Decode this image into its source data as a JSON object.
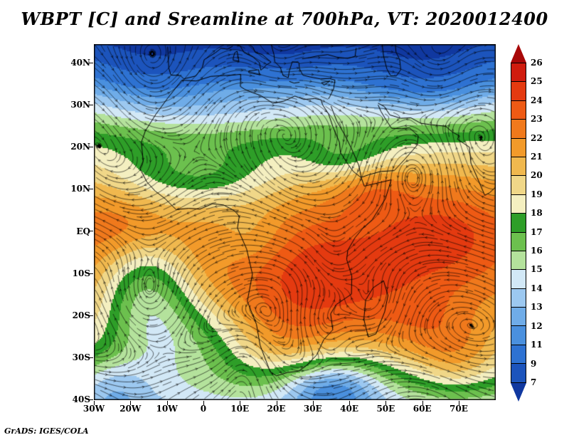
{
  "title": "WBPT [C] and Sreamline at 700hPa, VT: 2020012400",
  "footer": "GrADS: IGES/COLA",
  "chart_data": {
    "type": "heatmap",
    "variable": "WBPT [C]",
    "overlay": "streamlines",
    "level": "700hPa",
    "valid_time": "2020012400",
    "x_axis": {
      "labels": [
        "30W",
        "20W",
        "10W",
        "0",
        "10E",
        "20E",
        "30E",
        "40E",
        "50E",
        "60E",
        "70E"
      ],
      "range_deg_lon": [
        -30,
        80
      ]
    },
    "y_axis": {
      "labels": [
        "40N",
        "30N",
        "20N",
        "10N",
        "EQ",
        "10S",
        "20S",
        "30S",
        "40S"
      ],
      "range_deg_lat": [
        44.4,
        -40.6
      ]
    },
    "colorbar": {
      "tick_labels": [
        "26",
        "25",
        "24",
        "23",
        "22",
        "21",
        "20",
        "19",
        "18",
        "17",
        "16",
        "15",
        "14",
        "13",
        "12",
        "11",
        "9",
        "7"
      ],
      "levels": [
        7,
        9,
        11,
        12,
        13,
        14,
        15,
        16,
        17,
        18,
        19,
        20,
        21,
        22,
        23,
        24,
        25,
        26
      ],
      "box_colors_top_to_bottom": [
        "#D01C0E",
        "#E43A10",
        "#EE5A14",
        "#F0791C",
        "#F29A2A",
        "#F0B84E",
        "#F0D788",
        "#F4EFC0",
        "#2E9E28",
        "#6CC04E",
        "#B4E29C",
        "#D2E8F6",
        "#9CC8F0",
        "#6FACE8",
        "#4A90DE",
        "#2E72D2",
        "#1C54BC"
      ],
      "arrow_top_color": "#A80808",
      "arrow_bottom_color": "#1038A0",
      "legend_position": "right"
    }
  }
}
